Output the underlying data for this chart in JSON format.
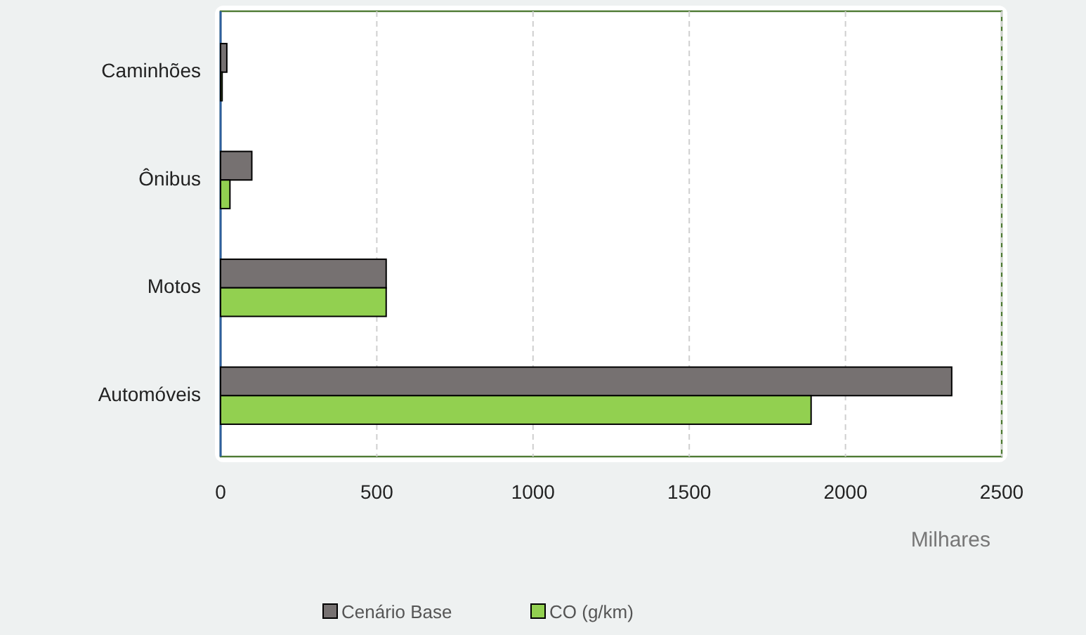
{
  "chart_data": {
    "type": "bar",
    "orientation": "horizontal",
    "categories": [
      "Caminhões",
      "Ônibus",
      "Motos",
      "Automóveis"
    ],
    "series": [
      {
        "name": "Cenário Base",
        "color": "#767171",
        "values": [
          20,
          100,
          530,
          2340
        ]
      },
      {
        "name": "CO (g/km)",
        "color": "#92d050",
        "values": [
          5,
          30,
          530,
          1890
        ]
      }
    ],
    "xlim": [
      0,
      2500
    ],
    "xticks": [
      0,
      500,
      1000,
      1500,
      2000,
      2500
    ],
    "xlabel": "Milhares",
    "grid": "x",
    "legend": "bottom"
  }
}
